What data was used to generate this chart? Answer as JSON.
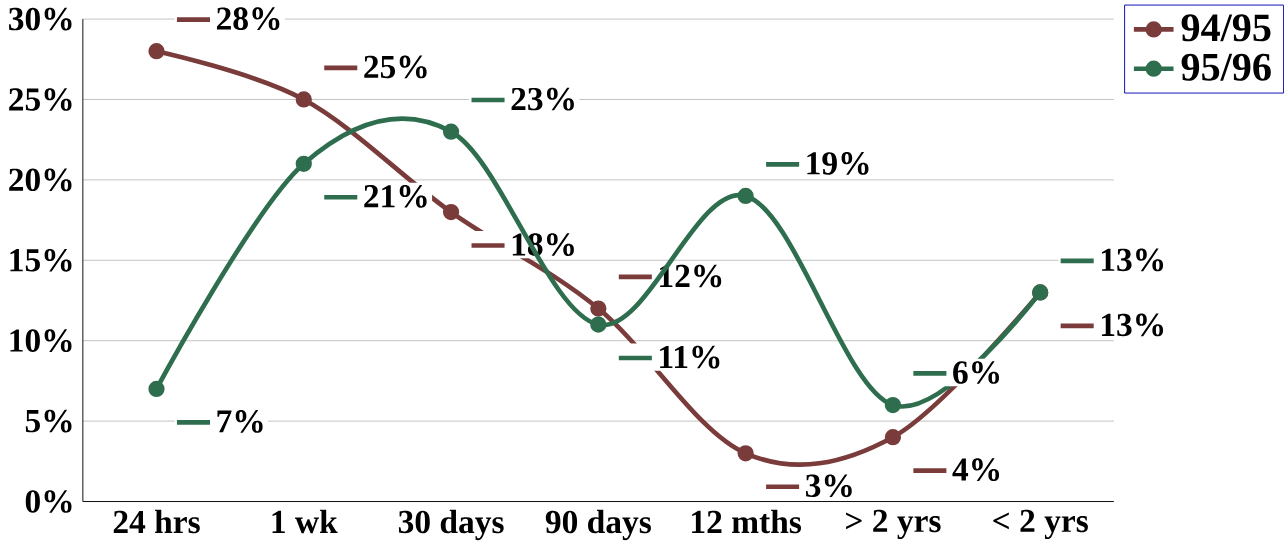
{
  "chart_data": {
    "type": "line",
    "categories": [
      "24 hrs",
      "1 wk",
      "30 days",
      "90 days",
      "12 mths",
      "> 2 yrs",
      "< 2 yrs"
    ],
    "series": [
      {
        "name": "94/95",
        "color": "#7a3b3b",
        "values": [
          28,
          25,
          18,
          12,
          3,
          4,
          13
        ],
        "value_labels": [
          "28%",
          "25%",
          "18%",
          "12%",
          "3%",
          "4%",
          "13%"
        ]
      },
      {
        "name": "95/96",
        "color": "#2e6e4e",
        "values": [
          7,
          21,
          23,
          11,
          19,
          6,
          13
        ],
        "value_labels": [
          "7%",
          "21%",
          "23%",
          "11%",
          "19%",
          "6%",
          "13%"
        ]
      }
    ],
    "ylim": [
      0,
      30
    ],
    "yticks": [
      {
        "value": 0,
        "label": "0%"
      },
      {
        "value": 5,
        "label": "5%"
      },
      {
        "value": 10,
        "label": "10%"
      },
      {
        "value": 15,
        "label": "15%"
      },
      {
        "value": 20,
        "label": "20%"
      },
      {
        "value": 25,
        "label": "25%"
      },
      {
        "value": 30,
        "label": "30%"
      }
    ],
    "grid": "y",
    "legend": "top right",
    "marker": "circle"
  }
}
